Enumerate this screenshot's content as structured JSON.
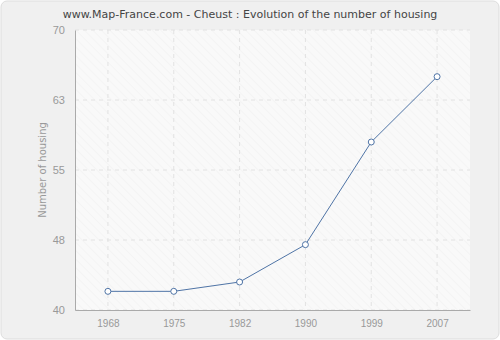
{
  "chart_data": {
    "type": "line",
    "title": "www.Map-France.com - Cheust : Evolution of the number of housing",
    "y_label": "Number of housing",
    "categories": [
      "1968",
      "1975",
      "1982",
      "1990",
      "1999",
      "2007"
    ],
    "values": [
      42,
      42,
      43,
      47,
      58,
      65
    ],
    "color": "#4f74a6",
    "marker": "circle",
    "ylim": [
      40,
      70
    ],
    "yticks": [
      40,
      {
        "value": 47.5,
        "label": "48"
      },
      55,
      {
        "value": 62.5,
        "label": "63"
      },
      70
    ],
    "grid": true
  }
}
